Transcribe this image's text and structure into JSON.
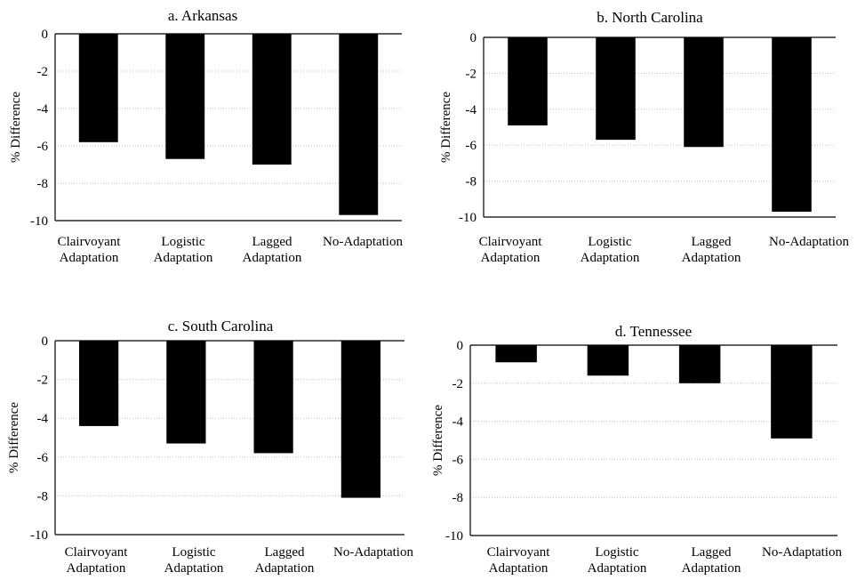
{
  "chart_data": [
    {
      "type": "bar",
      "title": "a. Arkansas",
      "ylabel": "% Difference",
      "xlabel": "",
      "categories": [
        [
          "Clairvoyant",
          "Adaptation"
        ],
        [
          "Logistic",
          "Adaptation"
        ],
        [
          "Lagged",
          "Adaptation"
        ],
        [
          "No-Adaptation"
        ]
      ],
      "values": [
        -5.8,
        -6.7,
        -7.0,
        -9.7
      ],
      "ylim": [
        -10,
        0
      ],
      "yticks": [
        "0",
        "-2",
        "-4",
        "-6",
        "-8",
        "-10"
      ],
      "grid": true,
      "bar_color": "#000000"
    },
    {
      "type": "bar",
      "title": "b. North Carolina",
      "ylabel": "% Difference",
      "xlabel": "",
      "categories": [
        [
          "Clairvoyant",
          "Adaptation"
        ],
        [
          "Logistic",
          "Adaptation"
        ],
        [
          "Lagged",
          "Adaptation"
        ],
        [
          "No-Adaptation"
        ]
      ],
      "values": [
        -4.9,
        -5.7,
        -6.1,
        -9.7
      ],
      "ylim": [
        -10,
        0
      ],
      "yticks": [
        "0",
        "-2",
        "-4",
        "-6",
        "-8",
        "-10"
      ],
      "grid": true,
      "bar_color": "#000000"
    },
    {
      "type": "bar",
      "title": "c. South Carolina",
      "ylabel": "% Difference",
      "xlabel": "",
      "categories": [
        [
          "Clairvoyant",
          "Adaptation"
        ],
        [
          "Logistic",
          "Adaptation"
        ],
        [
          "Lagged",
          "Adaptation"
        ],
        [
          "No-Adaptation"
        ]
      ],
      "values": [
        -4.4,
        -5.3,
        -5.8,
        -8.1
      ],
      "ylim": [
        -10,
        0
      ],
      "yticks": [
        "0",
        "-2",
        "-4",
        "-6",
        "-8",
        "-10"
      ],
      "grid": true,
      "bar_color": "#000000"
    },
    {
      "type": "bar",
      "title": "d. Tennessee",
      "ylabel": "% Difference",
      "xlabel": "",
      "categories": [
        [
          "Clairvoyant",
          "Adaptation"
        ],
        [
          "Logistic",
          "Adaptation"
        ],
        [
          "Lagged",
          "Adaptation"
        ],
        [
          "No-Adaptation"
        ]
      ],
      "values": [
        -0.9,
        -1.6,
        -2.0,
        -4.9
      ],
      "ylim": [
        -10,
        0
      ],
      "yticks": [
        "0",
        "-2",
        "-4",
        "-6",
        "-8",
        "-10"
      ],
      "grid": true,
      "bar_color": "#000000"
    }
  ]
}
